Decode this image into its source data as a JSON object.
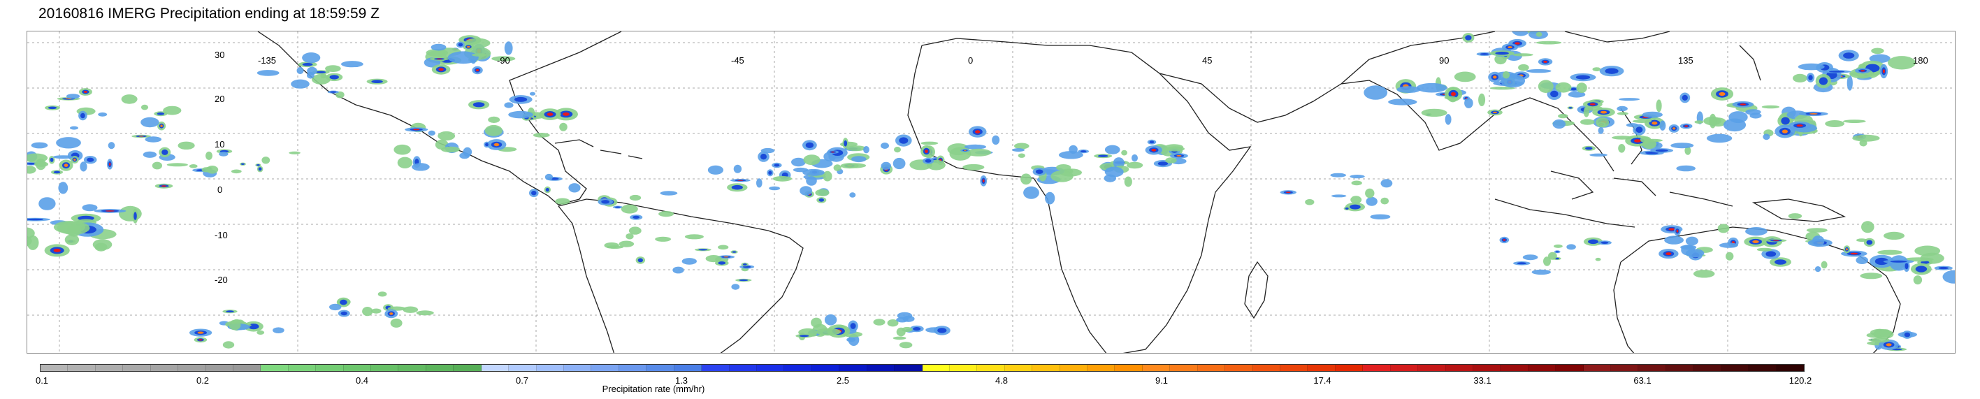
{
  "title": "20160816 IMERG Precipitation ending at 18:59:59 Z",
  "map": {
    "lat_labels": [
      "30",
      "20",
      "10",
      "0",
      "-10",
      "-20"
    ],
    "lon_labels": [
      "-135",
      "-90",
      "-45",
      "0",
      "45",
      "90",
      "135",
      "180"
    ],
    "gridlines": "dotted",
    "precip_colors": [
      "#8bd08b",
      "#5aa0e8",
      "#1a4bd8",
      "#0a1c9e",
      "#ff7f1a",
      "#e81a1a",
      "#ffd400"
    ]
  },
  "colorbar": {
    "ticks": [
      "0.1",
      "0.2",
      "0.4",
      "0.7",
      "1.3",
      "2.5",
      "4.8",
      "9.1",
      "17.4",
      "33.1",
      "63.1",
      "120.2"
    ],
    "label": "Precipitation rate (mm/hr)",
    "colors": [
      "#b5b5b5",
      "#b1b1b1",
      "#adadad",
      "#a9a9a9",
      "#a5a5a5",
      "#a1a1a1",
      "#9d9d9d",
      "#999999",
      "#7fd97f",
      "#79d379",
      "#73cd73",
      "#6dc76d",
      "#67c167",
      "#62bb62",
      "#5cb55c",
      "#57af57",
      "#c3d7ff",
      "#b1cbff",
      "#9fbefc",
      "#8db1f7",
      "#7ba4f2",
      "#6a98ee",
      "#588be9",
      "#4a7ee6",
      "#2c43f0",
      "#2238ec",
      "#1a2fe8",
      "#1226e0",
      "#0c1fd8",
      "#0818c8",
      "#0612b8",
      "#050ea8",
      "#ffff1e",
      "#fff01a",
      "#ffe016",
      "#ffd012",
      "#ffc00e",
      "#ffb00a",
      "#ffa006",
      "#ff9002",
      "#ff8a1e",
      "#fb7c1a",
      "#f76e16",
      "#f36012",
      "#ef520e",
      "#eb440a",
      "#e73606",
      "#e32802",
      "#e22020",
      "#d41c1c",
      "#c61818",
      "#b81414",
      "#aa1010",
      "#9c0c0c",
      "#8e0808",
      "#800404",
      "#8e1a1a",
      "#7f1616",
      "#701212",
      "#620f0f",
      "#540b0b",
      "#460808",
      "#3a0505",
      "#2e0202"
    ]
  }
}
